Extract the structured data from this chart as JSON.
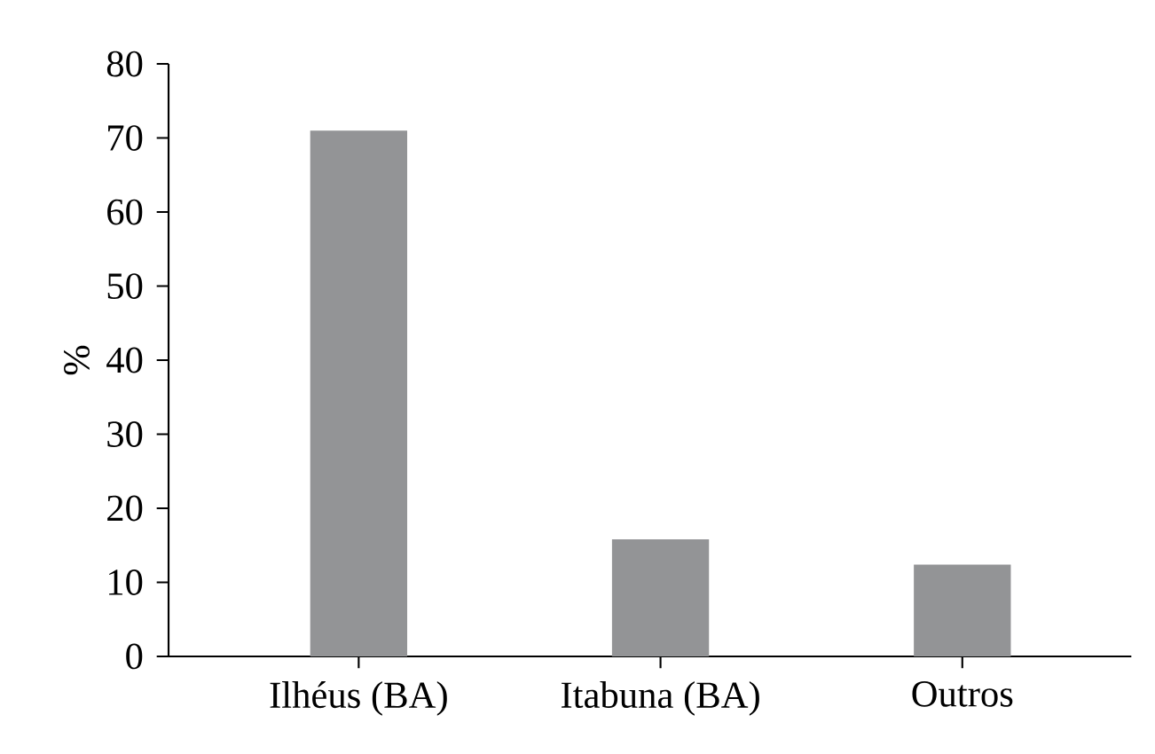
{
  "chart_data": {
    "type": "bar",
    "ylabel": "%",
    "categories": [
      "Ilhéus (BA)",
      "Itabuna (BA)",
      "Outros"
    ],
    "values": [
      71,
      15.8,
      12.4
    ],
    "color": "#939496",
    "ylim": [
      0,
      80
    ],
    "yticks": [
      0,
      10,
      20,
      30,
      40,
      50,
      60,
      70,
      80
    ],
    "grid": false
  }
}
